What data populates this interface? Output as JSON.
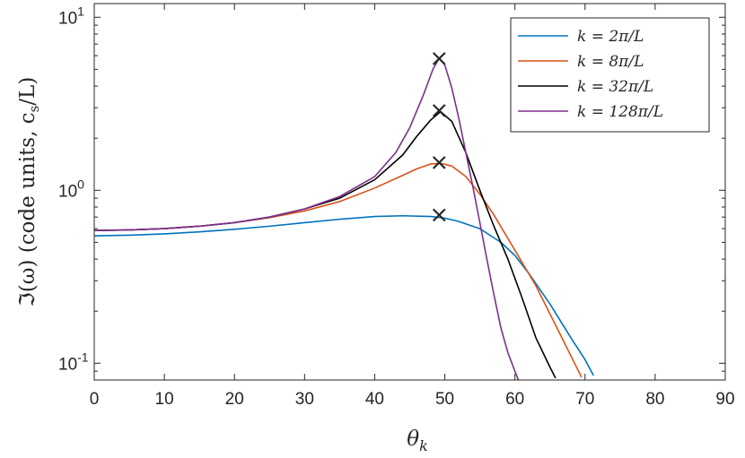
{
  "chart_data": {
    "type": "line",
    "title": "",
    "xlabel": "θ_k",
    "ylabel": "ℑ(ω) (code units, c_s/L)",
    "xlim": [
      0,
      90
    ],
    "ylim": [
      0.08,
      12
    ],
    "yscale": "log",
    "x_ticks": [
      0,
      10,
      20,
      30,
      40,
      50,
      60,
      70,
      80,
      90
    ],
    "x_tick_labels": [
      "0",
      "10",
      "20",
      "30",
      "40",
      "50",
      "60",
      "70",
      "80",
      "90"
    ],
    "y_ticks": [
      0.1,
      1,
      10
    ],
    "y_tick_labels": [
      {
        "base": "10",
        "exp": "-1"
      },
      {
        "base": "10",
        "exp": "0"
      },
      {
        "base": "10",
        "exp": "1"
      }
    ],
    "grid": false,
    "legend_position": "top-right",
    "series": [
      {
        "name": "k = 2π/L",
        "color": "#0072BD",
        "x": [
          0,
          5,
          10,
          15,
          20,
          25,
          30,
          35,
          40,
          44,
          48,
          50,
          52,
          55,
          58,
          60,
          62,
          65,
          68,
          70,
          71.2
        ],
        "y": [
          0.545,
          0.55,
          0.56,
          0.575,
          0.595,
          0.62,
          0.65,
          0.68,
          0.705,
          0.712,
          0.705,
          0.69,
          0.66,
          0.6,
          0.5,
          0.42,
          0.33,
          0.22,
          0.14,
          0.105,
          0.085
        ]
      },
      {
        "name": "k = 8π/L",
        "color": "#D95319",
        "x": [
          0,
          5,
          10,
          15,
          20,
          25,
          30,
          35,
          40,
          44,
          46,
          48,
          49.5,
          51,
          53,
          55,
          57,
          60,
          63,
          66,
          68,
          69.5
        ],
        "y": [
          0.585,
          0.59,
          0.6,
          0.62,
          0.65,
          0.695,
          0.76,
          0.86,
          1.03,
          1.22,
          1.33,
          1.42,
          1.43,
          1.38,
          1.2,
          0.95,
          0.72,
          0.45,
          0.28,
          0.16,
          0.11,
          0.083
        ]
      },
      {
        "name": "k = 32π/L",
        "color": "#000000",
        "x": [
          0,
          5,
          10,
          15,
          20,
          25,
          30,
          35,
          40,
          44,
          46,
          48,
          49.4,
          51,
          53,
          55,
          57,
          59,
          61,
          63,
          65,
          65.8
        ],
        "y": [
          0.585,
          0.59,
          0.6,
          0.62,
          0.65,
          0.7,
          0.78,
          0.9,
          1.15,
          1.6,
          2.05,
          2.55,
          2.85,
          2.5,
          1.65,
          1.0,
          0.62,
          0.4,
          0.24,
          0.14,
          0.095,
          0.082
        ]
      },
      {
        "name": "k = 128π/L",
        "color": "#7E2F8E",
        "x": [
          0,
          5,
          10,
          15,
          20,
          25,
          30,
          35,
          40,
          43,
          45,
          47,
          48.3,
          49.2,
          50,
          51,
          52,
          53,
          54,
          55,
          56,
          57,
          58,
          59,
          60,
          60.5
        ],
        "y": [
          0.585,
          0.59,
          0.6,
          0.62,
          0.65,
          0.7,
          0.78,
          0.92,
          1.2,
          1.65,
          2.3,
          3.6,
          5.0,
          5.8,
          5.3,
          3.9,
          2.6,
          1.65,
          1.05,
          0.65,
          0.4,
          0.25,
          0.16,
          0.115,
          0.09,
          0.08
        ]
      }
    ],
    "markers": {
      "symbol": "×",
      "color": "#000000",
      "points": [
        {
          "x": 49.2,
          "y": 0.72
        },
        {
          "x": 49.2,
          "y": 1.44
        },
        {
          "x": 49.2,
          "y": 2.88
        },
        {
          "x": 49.2,
          "y": 5.76
        }
      ]
    }
  }
}
